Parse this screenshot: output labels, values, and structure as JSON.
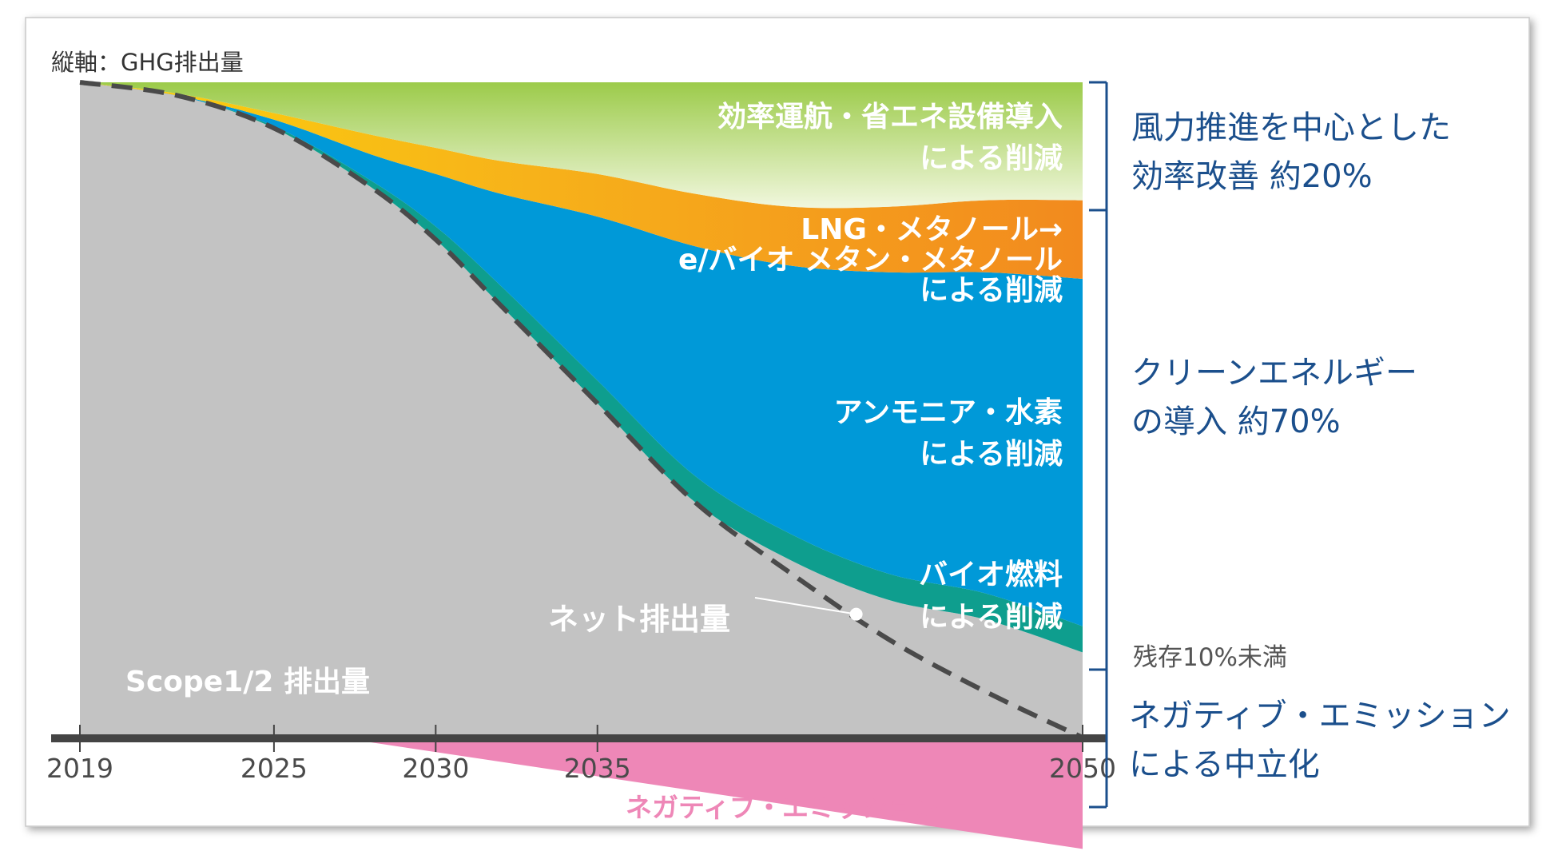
{
  "chart_data": {
    "type": "area",
    "title": "",
    "ylabel": "縦軸：GHG排出量",
    "xlabel": "",
    "x_ticks": [
      "2019",
      "2025",
      "2030",
      "2035",
      "2050"
    ],
    "x": [
      2019,
      2022,
      2025,
      2028,
      2030,
      2032,
      2035,
      2038,
      2041,
      2044,
      2047,
      2050
    ],
    "xlim": [
      2019,
      2050
    ],
    "ylim": [
      -20,
      100
    ],
    "series": [
      {
        "key": "scope",
        "name": "Scope1/2 排出量",
        "color": "#c3c3c3",
        "values": [
          100,
          98,
          93,
          84,
          76,
          66,
          51,
          36,
          27,
          21,
          18,
          13
        ]
      },
      {
        "key": "bio",
        "name": "バイオ燃料による削減",
        "color": "#0e9e8e",
        "values": [
          0,
          0,
          0.3,
          1,
          2,
          3,
          3.5,
          4,
          4,
          4,
          4,
          4
        ]
      },
      {
        "key": "ammonia",
        "name": "アンモニア・水素による削減",
        "color": "#0099d8",
        "values": [
          0,
          0,
          1,
          4,
          8,
          14,
          25,
          35,
          41,
          46,
          49,
          53
        ]
      },
      {
        "key": "lng",
        "name": "LNG・メタノール→e/バイオ メタン・メタノールによる削減",
        "color": "#f39c1f",
        "values": [
          0,
          0.3,
          1,
          3,
          4,
          5,
          6.5,
          8,
          9,
          10,
          11,
          12
        ]
      },
      {
        "key": "efficiency",
        "name": "効率運航・省エネ設備導入による削減",
        "color": "#a8d66e",
        "values": [
          0,
          1.7,
          4.7,
          8,
          10,
          12,
          14,
          17,
          19,
          19,
          18,
          18
        ]
      }
    ],
    "negative_emission": {
      "name": "ネガティブ・エミッション",
      "color": "#ee87b7",
      "x": [
        2027,
        2050
      ],
      "values": [
        0,
        -17
      ]
    },
    "net_emissions": {
      "name": "ネット排出量",
      "x": [
        2019,
        2022,
        2025,
        2028,
        2030,
        2032,
        2035,
        2038,
        2041,
        2044,
        2047,
        2050
      ],
      "values": [
        100,
        98,
        93,
        84,
        76,
        66,
        51,
        36,
        25,
        15,
        7,
        0
      ],
      "marker_x": 2043
    },
    "area_labels": {
      "efficiency": [
        "効率運航・省エネ設備導入",
        "による削減"
      ],
      "lng": [
        "LNG・メタノール→",
        "e/バイオ メタン・メタノール",
        "による削減"
      ],
      "ammonia": [
        "アンモニア・水素",
        "による削減"
      ],
      "bio": [
        "バイオ燃料",
        "による削減"
      ],
      "net": "ネット排出量",
      "scope": "Scope1/2 排出量",
      "negative": "ネガティブ・エミッション"
    },
    "brackets": [
      {
        "lines": [
          "風力推進を中心とした",
          "効率改善 約20%"
        ],
        "color": "#1b4f8c"
      },
      {
        "lines": [
          "クリーンエネルギー",
          "の導入 約70%"
        ],
        "color": "#1b4f8c"
      },
      {
        "lines": [
          "残存10%未満"
        ],
        "color": "#555555"
      },
      {
        "lines": [
          "ネガティブ・エミッション",
          "による中立化"
        ],
        "color": "#1b4f8c"
      }
    ],
    "colors": {
      "axis": "#444444",
      "dashed": "#4a4a4a",
      "bracket": "#1b4f8c",
      "label_white": "#ffffff",
      "neg_label": "#ee87b7"
    }
  }
}
